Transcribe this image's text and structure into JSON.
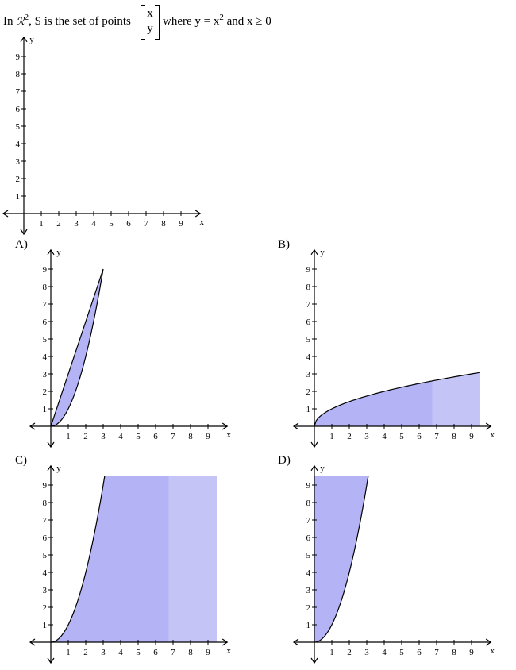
{
  "question": {
    "prefix": "In ",
    "space_symbol": "ℛ",
    "space_exponent": "2",
    "middle": ", S is the set of points",
    "vector_top": "x",
    "vector_bottom": "y",
    "condition_pre": "where y = x",
    "condition_exp": "2",
    "condition_post": " and x ≥ 0"
  },
  "colors": {
    "fill": "#b3b3f5",
    "fill_light": "#c4c4f7",
    "curve": "#000000",
    "axis": "#000000"
  },
  "options": [
    {
      "label": "A)"
    },
    {
      "label": "B)"
    },
    {
      "label": "C)"
    },
    {
      "label": "D)"
    }
  ],
  "chart_data": [
    {
      "type": "area",
      "id": "question-graph",
      "xlabel": "x",
      "ylabel": "y",
      "x_ticks": [
        1,
        2,
        3,
        4,
        5,
        6,
        7,
        8,
        9
      ],
      "y_ticks": [
        1,
        2,
        3,
        4,
        5,
        6,
        7,
        8,
        9
      ],
      "xlim": [
        0,
        9.5
      ],
      "ylim": [
        0,
        9.5
      ],
      "region": null
    },
    {
      "type": "area",
      "id": "option-a-graph",
      "xlabel": "x",
      "ylabel": "y",
      "x_ticks": [
        1,
        2,
        3,
        4,
        5,
        6,
        7,
        8,
        9
      ],
      "y_ticks": [
        1,
        2,
        3,
        4,
        5,
        6,
        7,
        8,
        9
      ],
      "xlim": [
        0,
        9.5
      ],
      "ylim": [
        0,
        9.5
      ],
      "region": {
        "description": "between y = x^2 and y = 3x for 0 ≤ x ≤ 3",
        "x_range": [
          0,
          3
        ],
        "lower": "x^2",
        "upper": "3x"
      }
    },
    {
      "type": "area",
      "id": "option-b-graph",
      "xlabel": "x",
      "ylabel": "y",
      "x_ticks": [
        1,
        2,
        3,
        4,
        5,
        6,
        7,
        8,
        9
      ],
      "y_ticks": [
        1,
        2,
        3,
        4,
        5,
        6,
        7,
        8,
        9
      ],
      "xlim": [
        0,
        9.5
      ],
      "ylim": [
        0,
        9.5
      ],
      "region": {
        "description": "between y = 0 and y = sqrt(x) for x ≥ 0",
        "x_range": [
          0,
          9.5
        ],
        "lower": "0",
        "upper": "sqrt(x)"
      }
    },
    {
      "type": "area",
      "id": "option-c-graph",
      "xlabel": "x",
      "ylabel": "y",
      "x_ticks": [
        1,
        2,
        3,
        4,
        5,
        6,
        7,
        8,
        9
      ],
      "y_ticks": [
        1,
        2,
        3,
        4,
        5,
        6,
        7,
        8,
        9
      ],
      "xlim": [
        0,
        9.5
      ],
      "ylim": [
        0,
        9.5
      ],
      "region": {
        "description": "below y = x^2 for x ≥ 0",
        "x_range": [
          0,
          9.5
        ],
        "lower": "0",
        "upper": "x^2"
      }
    },
    {
      "type": "area",
      "id": "option-d-graph",
      "xlabel": "x",
      "ylabel": "y",
      "x_ticks": [
        1,
        2,
        3,
        4,
        5,
        6,
        7,
        8,
        9
      ],
      "y_ticks": [
        1,
        2,
        3,
        4,
        5,
        6,
        7,
        8,
        9
      ],
      "xlim": [
        0,
        9.5
      ],
      "ylim": [
        0,
        9.5
      ],
      "region": {
        "description": "above y = x^2 for x ≥ 0",
        "x_range": [
          0,
          3.08
        ],
        "lower": "x^2",
        "upper": "top"
      }
    }
  ]
}
